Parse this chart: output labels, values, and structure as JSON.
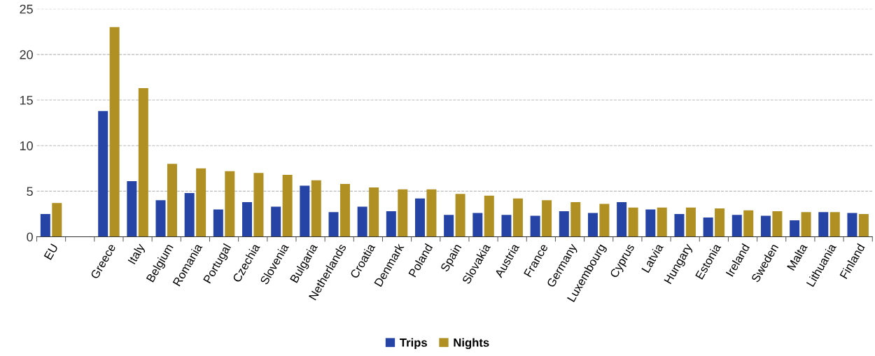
{
  "chart_data": {
    "type": "bar",
    "categories": [
      "EU",
      null,
      "Greece",
      "Italy",
      "Belgium",
      "Romania",
      "Portugal",
      "Czechia",
      "Slovenia",
      "Bulgaria",
      "Netherlands",
      "Croatia",
      "Denmark",
      "Poland",
      "Spain",
      "Slovakia",
      "Austria",
      "France",
      "Germany",
      "Luxembourg",
      "Cyprus",
      "Latvia",
      "Hungary",
      "Estonia",
      "Ireland",
      "Sweden",
      "Malta",
      "Lithuania",
      "Finland"
    ],
    "series": [
      {
        "name": "Trips",
        "color": "#2644a6",
        "values": [
          2.5,
          null,
          13.8,
          6.1,
          4.0,
          4.8,
          3.0,
          3.8,
          3.3,
          5.6,
          2.7,
          3.3,
          2.8,
          4.2,
          2.4,
          2.6,
          2.4,
          2.3,
          2.8,
          2.6,
          3.8,
          3.0,
          2.5,
          2.1,
          2.4,
          2.3,
          1.8,
          2.7,
          2.6
        ]
      },
      {
        "name": "Nights",
        "color": "#b09022",
        "values": [
          3.7,
          null,
          23.0,
          16.3,
          8.0,
          7.5,
          7.2,
          7.0,
          6.8,
          6.2,
          5.8,
          5.4,
          5.2,
          5.2,
          4.7,
          4.5,
          4.2,
          4.0,
          3.8,
          3.6,
          3.2,
          3.2,
          3.2,
          3.1,
          2.9,
          2.8,
          2.7,
          2.7,
          2.5
        ]
      }
    ],
    "ylim": [
      0,
      25
    ],
    "yticks": [
      0,
      5,
      10,
      15,
      20,
      25
    ],
    "grid": "y",
    "legend": "bottom"
  }
}
